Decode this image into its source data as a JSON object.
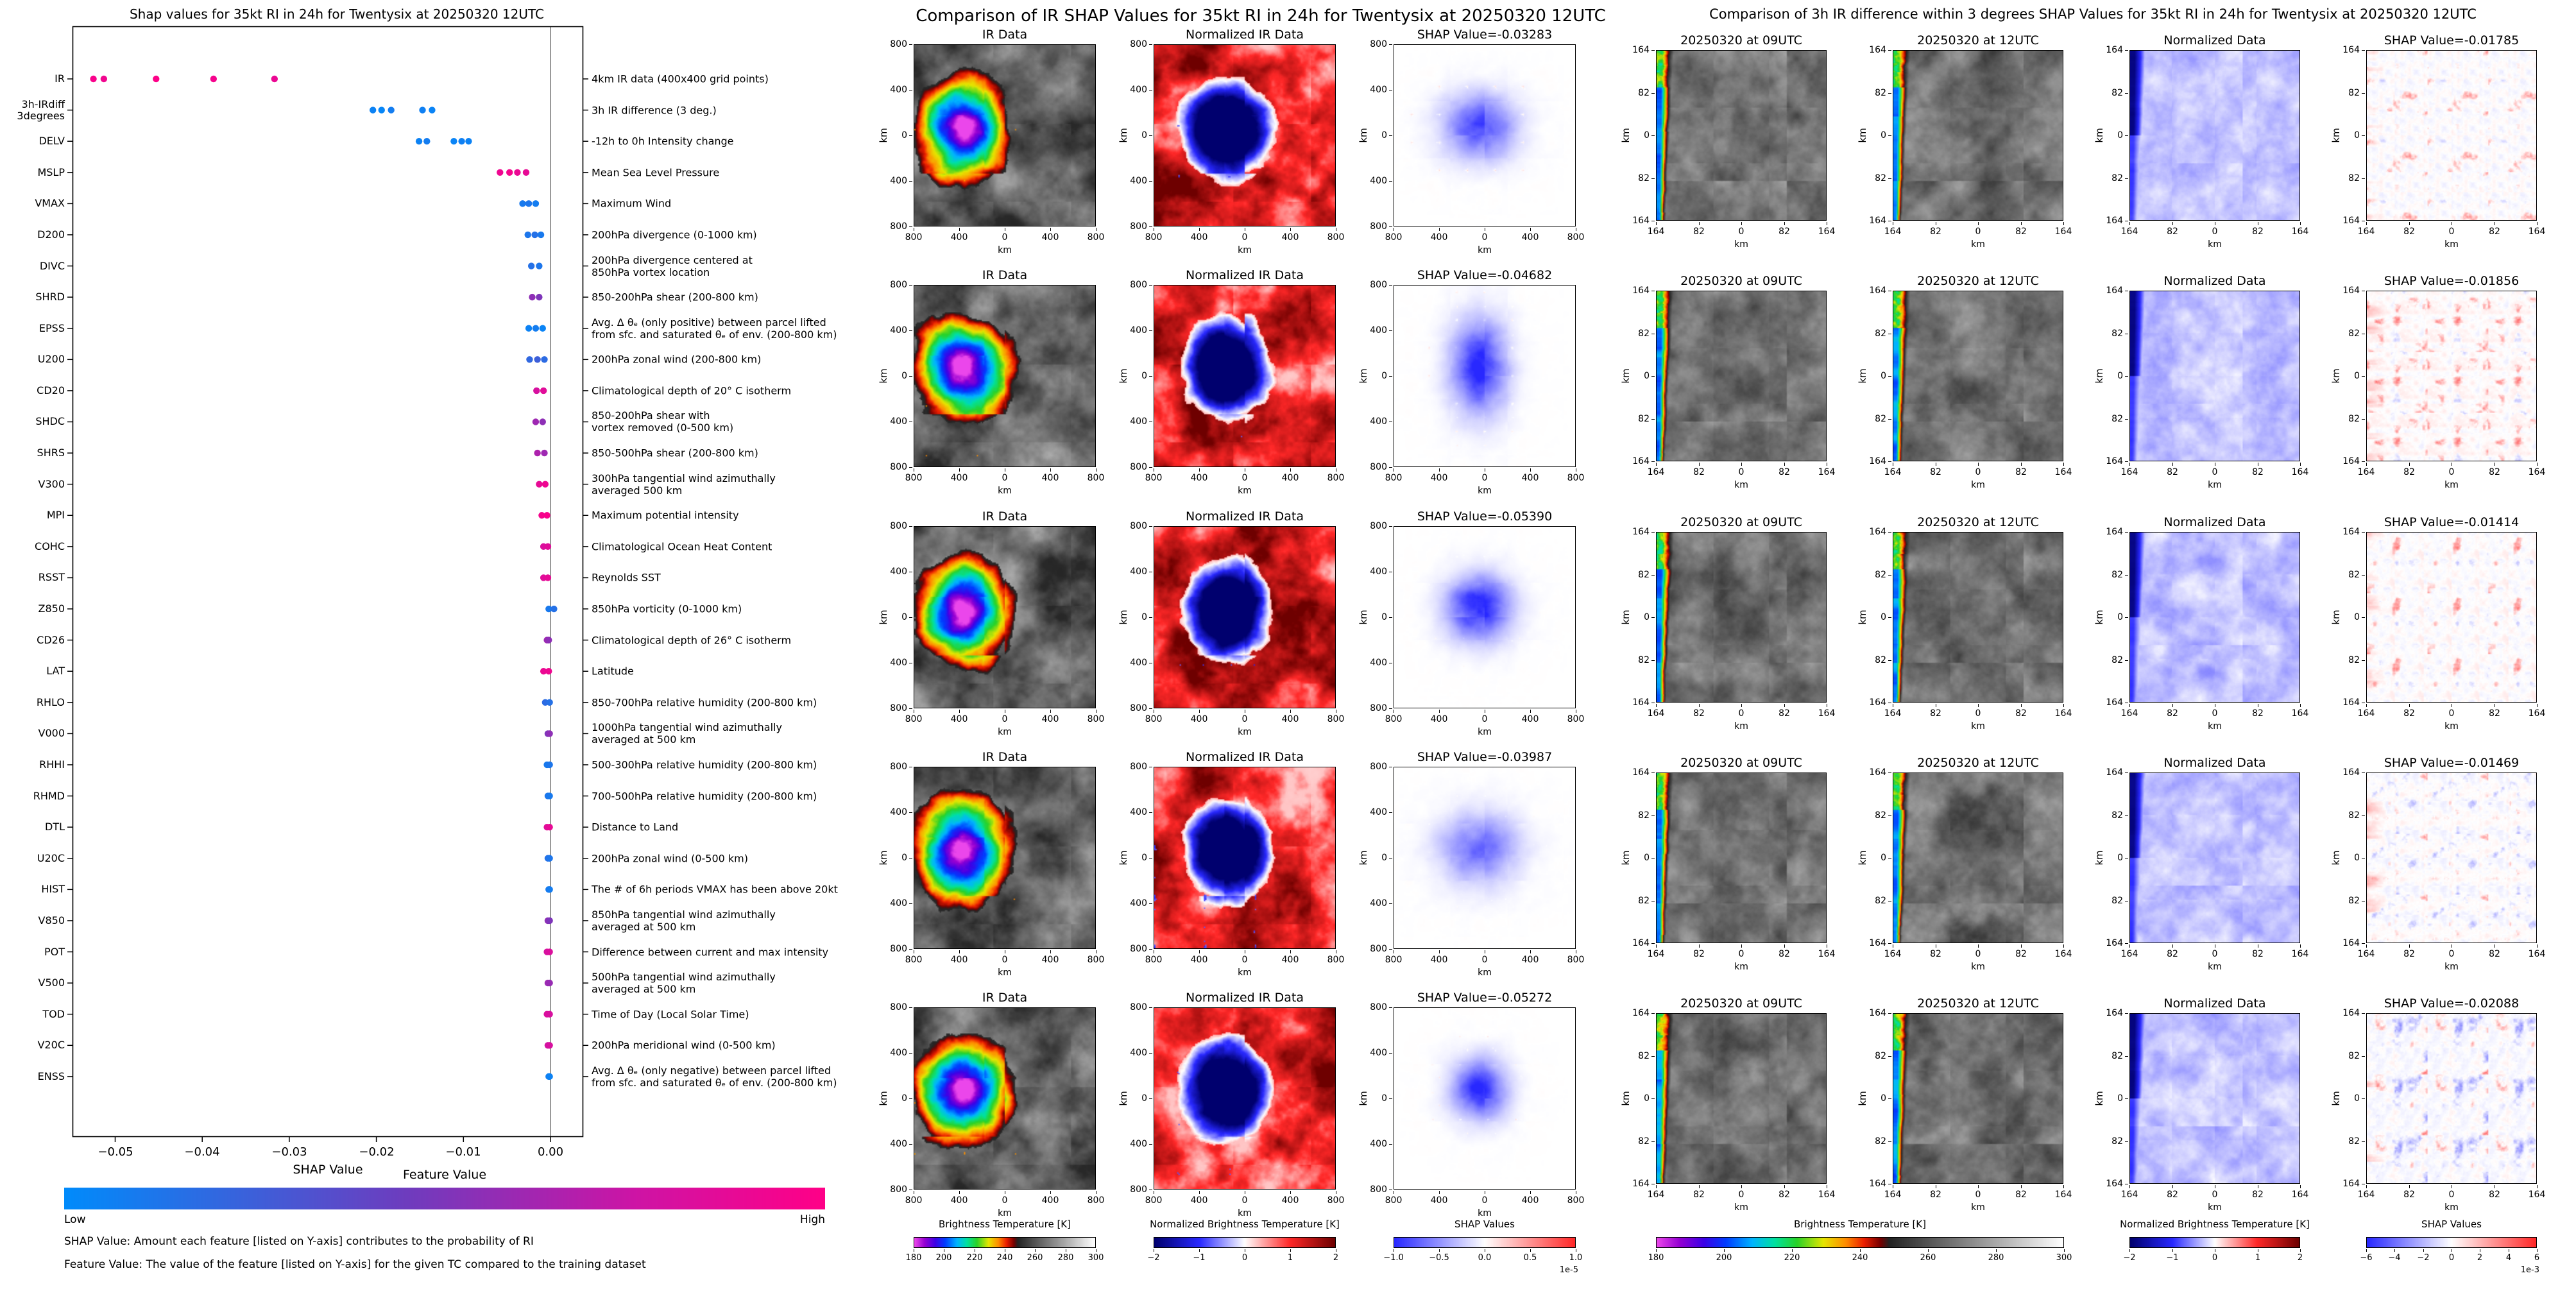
{
  "figure": {
    "background": "#ffffff"
  },
  "colors": {
    "feature_low": "#008bfb",
    "feature_high": "#ff0087"
  },
  "chart_data": {
    "type": "scatter",
    "title": "Shap values for 35kt RI in 24h for Twentysix at 20250320 12UTC",
    "xlabel": "SHAP Value",
    "xlim": [
      -0.0549,
      0.0038
    ],
    "x_ticks": [
      {
        "v": -0.05,
        "label": "−0.05"
      },
      {
        "v": -0.04,
        "label": "−0.04"
      },
      {
        "v": -0.03,
        "label": "−0.03"
      },
      {
        "v": -0.02,
        "label": "−0.02"
      },
      {
        "v": -0.01,
        "label": "−0.01"
      },
      {
        "v": 0.0,
        "label": "0.00"
      }
    ],
    "colorbar": {
      "title": "Feature Value",
      "low": "Low",
      "high": "High"
    },
    "footnotes": [
      "SHAP Value: Amount each feature [listed on Y-axis] contributes to the probability of RI",
      "Feature Value: The value of the feature [listed on Y-axis] for the given TC compared to the training dataset"
    ],
    "features": [
      {
        "label": "IR",
        "desc": "4km IR data (400x400 grid points)",
        "points": [
          [
            -0.0525,
            0.97
          ],
          [
            -0.0513,
            0.93
          ],
          [
            -0.0453,
            0.99
          ],
          [
            -0.0387,
            0.95
          ],
          [
            -0.0317,
            0.9
          ]
        ]
      },
      {
        "label": "3h-IRdiff\n3degrees",
        "desc": "3h IR difference (3 deg.)",
        "points": [
          [
            -0.0204,
            0.05
          ],
          [
            -0.0194,
            0.03
          ],
          [
            -0.0183,
            0.08
          ],
          [
            -0.0147,
            0.06
          ],
          [
            -0.0136,
            0.04
          ]
        ]
      },
      {
        "label": "DELV",
        "desc": "-12h to 0h Intensity change",
        "points": [
          [
            -0.0151,
            0.05
          ],
          [
            -0.0142,
            0.08
          ],
          [
            -0.0111,
            0.04
          ],
          [
            -0.0102,
            0.06
          ],
          [
            -0.0094,
            0.05
          ]
        ]
      },
      {
        "label": "MSLP",
        "desc": "Mean Sea Level Pressure",
        "points": [
          [
            -0.0058,
            0.92
          ],
          [
            -0.0047,
            0.95
          ],
          [
            -0.0038,
            0.9
          ],
          [
            -0.0028,
            0.88
          ]
        ]
      },
      {
        "label": "VMAX",
        "desc": "Maximum Wind",
        "points": [
          [
            -0.0032,
            0.1
          ],
          [
            -0.0025,
            0.12
          ],
          [
            -0.0017,
            0.08
          ]
        ]
      },
      {
        "label": "D200",
        "desc": "200hPa divergence (0-1000 km)",
        "points": [
          [
            -0.0026,
            0.12
          ],
          [
            -0.0018,
            0.15
          ],
          [
            -0.0011,
            0.1
          ]
        ]
      },
      {
        "label": "DIVC",
        "desc": "200hPa divergence centered at\n850hPa vortex location",
        "points": [
          [
            -0.0022,
            0.15
          ],
          [
            -0.0013,
            0.12
          ]
        ]
      },
      {
        "label": "SHRD",
        "desc": "850-200hPa shear (200-800 km)",
        "points": [
          [
            -0.0021,
            0.55
          ],
          [
            -0.0013,
            0.5
          ]
        ]
      },
      {
        "label": "EPSS",
        "desc": "Avg. Δ θₑ (only positive) between parcel lifted\nfrom sfc. and saturated θₑ of env. (200-800 km)",
        "points": [
          [
            -0.0025,
            0.05
          ],
          [
            -0.0017,
            0.08
          ],
          [
            -0.0009,
            0.04
          ]
        ]
      },
      {
        "label": "U200",
        "desc": "200hPa zonal wind (200-800 km)",
        "points": [
          [
            -0.0024,
            0.2
          ],
          [
            -0.0015,
            0.25
          ],
          [
            -0.0007,
            0.18
          ]
        ]
      },
      {
        "label": "CD20",
        "desc": "Climatological depth of 20° C isotherm",
        "points": [
          [
            -0.0016,
            0.8
          ],
          [
            -0.0008,
            0.85
          ]
        ]
      },
      {
        "label": "SHDC",
        "desc": "850-200hPa shear with\nvortex removed (0-500 km)",
        "points": [
          [
            -0.0017,
            0.6
          ],
          [
            -0.0009,
            0.55
          ]
        ]
      },
      {
        "label": "SHRS",
        "desc": "850-500hPa shear (200-800 km)",
        "points": [
          [
            -0.0015,
            0.65
          ],
          [
            -0.0007,
            0.6
          ]
        ]
      },
      {
        "label": "V300",
        "desc": "300hPa tangential wind azimuthally\naveraged 500 km",
        "points": [
          [
            -0.0013,
            0.88
          ],
          [
            -0.0006,
            0.92
          ]
        ]
      },
      {
        "label": "MPI",
        "desc": "Maximum potential intensity",
        "points": [
          [
            -0.001,
            0.95
          ],
          [
            -0.0004,
            0.97
          ]
        ]
      },
      {
        "label": "COHC",
        "desc": "Climatological Ocean Heat Content",
        "points": [
          [
            -0.0008,
            0.82
          ],
          [
            -0.0003,
            0.85
          ]
        ]
      },
      {
        "label": "RSST",
        "desc": "Reynolds SST",
        "points": [
          [
            -0.0008,
            0.85
          ],
          [
            -0.0003,
            0.88
          ]
        ]
      },
      {
        "label": "Z850",
        "desc": "850hPa vorticity (0-1000 km)",
        "points": [
          [
            -0.0002,
            0.1
          ],
          [
            0.0004,
            0.15
          ]
        ]
      },
      {
        "label": "CD26",
        "desc": "Climatological depth of 26° C isotherm",
        "points": [
          [
            -0.0004,
            0.6
          ],
          [
            -0.0002,
            0.55
          ]
        ]
      },
      {
        "label": "LAT",
        "desc": "Latitude",
        "points": [
          [
            -0.0008,
            0.9
          ],
          [
            -0.0002,
            0.92
          ]
        ]
      },
      {
        "label": "RHLO",
        "desc": "850-700hPa relative humidity (200-800 km)",
        "points": [
          [
            -0.0006,
            0.18
          ],
          [
            -0.0001,
            0.15
          ]
        ]
      },
      {
        "label": "V000",
        "desc": "1000hPa tangential wind azimuthally\naveraged at 500 km",
        "points": [
          [
            -0.0003,
            0.5
          ],
          [
            -0.0001,
            0.55
          ]
        ]
      },
      {
        "label": "RHHI",
        "desc": "500-300hPa relative humidity (200-800 km)",
        "points": [
          [
            -0.0004,
            0.1
          ],
          [
            -0.0001,
            0.12
          ]
        ]
      },
      {
        "label": "RHMD",
        "desc": "700-500hPa relative humidity (200-800 km)",
        "points": [
          [
            -0.0003,
            0.12
          ],
          [
            -0.0001,
            0.1
          ]
        ]
      },
      {
        "label": "DTL",
        "desc": "Distance to Land",
        "points": [
          [
            -0.0004,
            0.85
          ],
          [
            -0.0001,
            0.88
          ]
        ]
      },
      {
        "label": "U20C",
        "desc": "200hPa zonal wind (0-500 km)",
        "points": [
          [
            -0.0003,
            0.15
          ],
          [
            -0.0001,
            0.12
          ]
        ]
      },
      {
        "label": "HIST",
        "desc": "The # of 6h periods VMAX has been above 20kt",
        "points": [
          [
            -0.0002,
            0.1
          ],
          [
            -0.0001,
            0.08
          ]
        ]
      },
      {
        "label": "V850",
        "desc": "850hPa tangential wind azimuthally\naveraged at 500 km",
        "points": [
          [
            -0.0003,
            0.55
          ],
          [
            -0.0001,
            0.5
          ]
        ]
      },
      {
        "label": "POT",
        "desc": "Difference between current and max intensity",
        "points": [
          [
            -0.0004,
            0.8
          ],
          [
            -0.0001,
            0.82
          ]
        ]
      },
      {
        "label": "V500",
        "desc": "500hPa tangential wind azimuthally\naveraged at 500 km",
        "points": [
          [
            -0.0003,
            0.6
          ],
          [
            -0.0001,
            0.58
          ]
        ]
      },
      {
        "label": "TOD",
        "desc": "Time of Day (Local Solar Time)",
        "points": [
          [
            -0.0004,
            0.82
          ],
          [
            -0.0001,
            0.8
          ]
        ]
      },
      {
        "label": "V20C",
        "desc": "200hPa meridional wind (0-500 km)",
        "points": [
          [
            -0.0003,
            0.78
          ],
          [
            -0.0001,
            0.8
          ]
        ]
      },
      {
        "label": "ENSS",
        "desc": "Avg. Δ θₑ (only negative) between parcel lifted\nfrom sfc. and saturated θₑ of env. (200-800 km)",
        "points": [
          [
            -0.0002,
            0.08
          ],
          [
            -0.0001,
            0.05
          ]
        ]
      }
    ]
  },
  "ir_panel": {
    "title": "Comparison of IR SHAP Values for 35kt RI in 24h for Twentysix at 20250320 12UTC",
    "col_titles": [
      "IR Data",
      "Normalized IR Data"
    ],
    "rows": [
      {
        "shap_title": "SHAP Value=-0.03283"
      },
      {
        "shap_title": "SHAP Value=-0.04682"
      },
      {
        "shap_title": "SHAP Value=-0.05390"
      },
      {
        "shap_title": "SHAP Value=-0.03987"
      },
      {
        "shap_title": "SHAP Value=-0.05272"
      }
    ],
    "ticks": [
      "800",
      "400",
      "0",
      "400",
      "800"
    ],
    "axis_label": "km",
    "colorbars": [
      {
        "label": "Brightness Temperature [K]",
        "ticks": [
          "180",
          "200",
          "220",
          "240",
          "260",
          "280",
          "300"
        ]
      },
      {
        "label": "Normalized Brightness Temperature [K]",
        "ticks": [
          "−2",
          "−1",
          "0",
          "1",
          "2"
        ]
      },
      {
        "label": "SHAP Values",
        "ticks": [
          "−1.0",
          "−0.5",
          "0.0",
          "0.5",
          "1.0"
        ],
        "scale": "1e-5"
      }
    ]
  },
  "irdiff_panel": {
    "title": "Comparison of 3h IR difference within 3 degrees SHAP Values for 35kt RI in 24h for Twentysix at 20250320 12UTC",
    "col_titles": [
      "20250320 at 09UTC",
      "20250320 at 12UTC",
      "Normalized Data"
    ],
    "rows": [
      {
        "shap_title": "SHAP Value=-0.01785"
      },
      {
        "shap_title": "SHAP Value=-0.01856"
      },
      {
        "shap_title": "SHAP Value=-0.01414"
      },
      {
        "shap_title": "SHAP Value=-0.01469"
      },
      {
        "shap_title": "SHAP Value=-0.02088"
      }
    ],
    "ticks": [
      "164",
      "82",
      "0",
      "82",
      "164"
    ],
    "axis_label": "km",
    "colorbars": [
      {
        "label": "Brightness Temperature [K]",
        "ticks": [
          "180",
          "200",
          "220",
          "240",
          "260",
          "280",
          "300"
        ]
      },
      {
        "label": "Normalized Brightness Temperature [K]",
        "ticks": [
          "−2",
          "−1",
          "0",
          "1",
          "2"
        ]
      },
      {
        "label": "SHAP Values",
        "ticks": [
          "−6",
          "−4",
          "−2",
          "0",
          "2",
          "4",
          "6"
        ],
        "scale": "1e-3"
      }
    ]
  }
}
